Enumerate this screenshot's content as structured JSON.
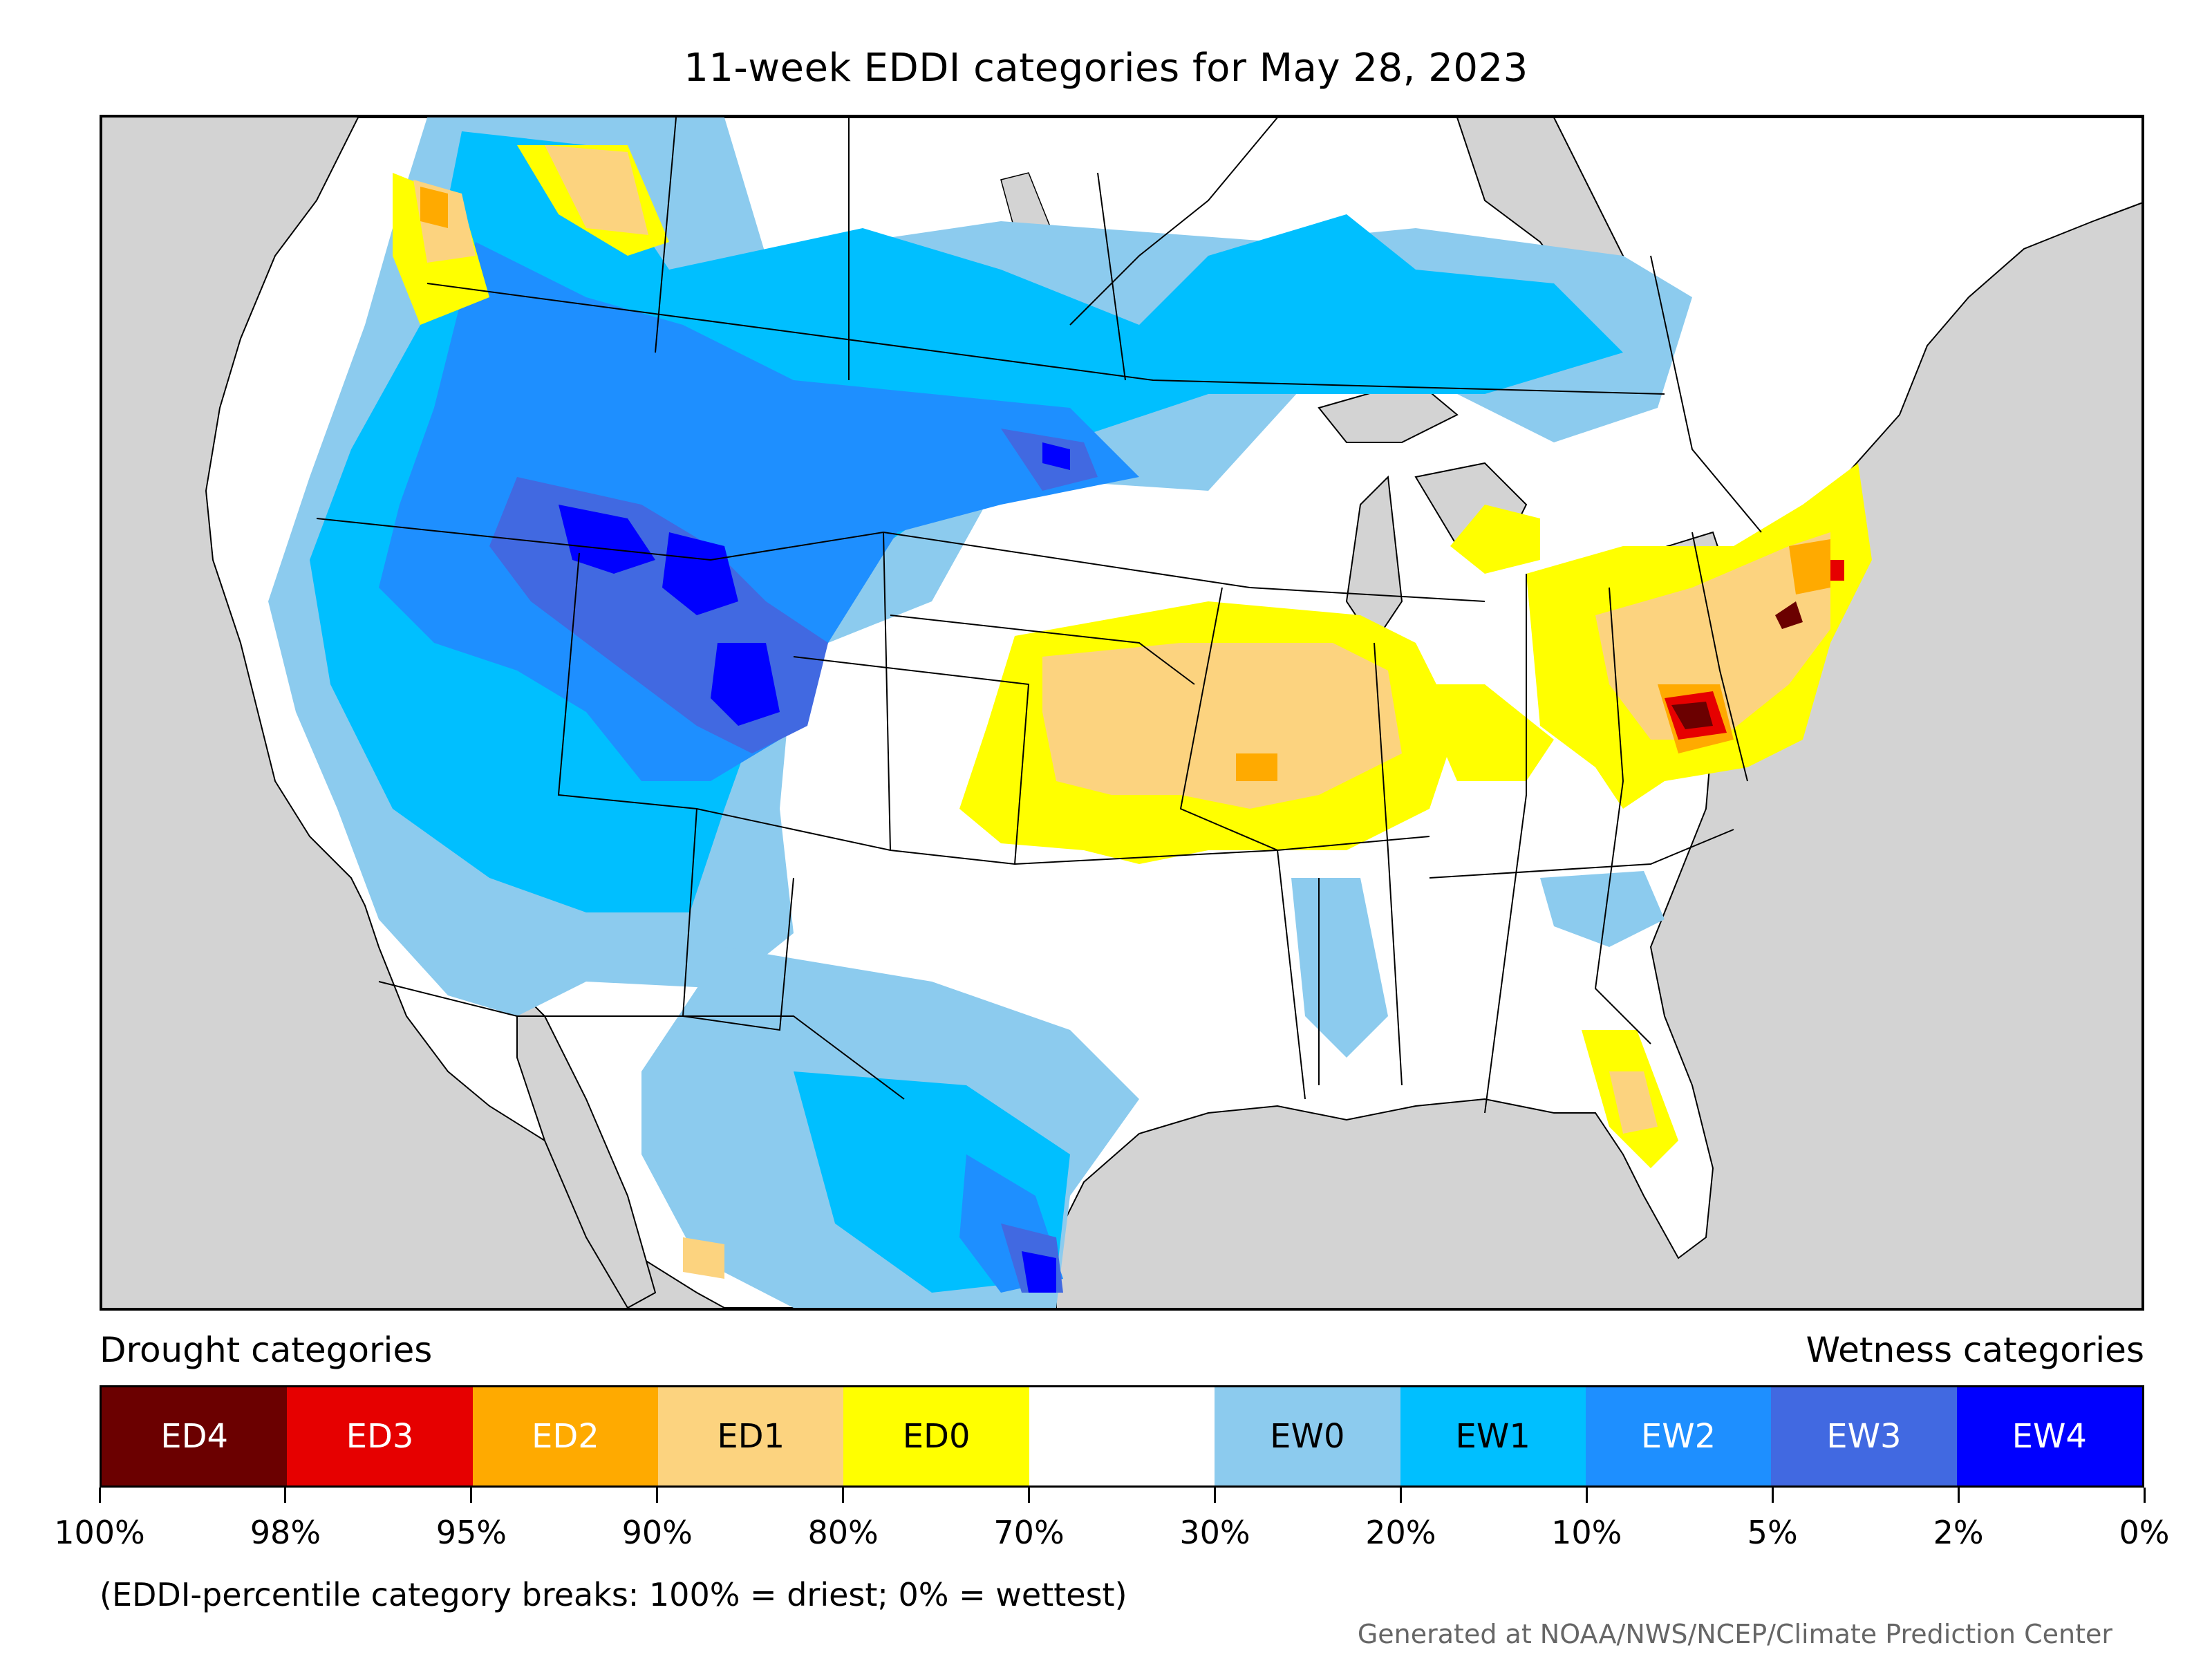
{
  "title": "11-week EDDI categories for May 28, 2023",
  "legend": {
    "left_heading": "Drought categories",
    "right_heading": "Wetness categories",
    "categories": [
      {
        "label": "ED4",
        "color": "#6b0000",
        "text_color": "#ffffff"
      },
      {
        "label": "ED3",
        "color": "#e60000",
        "text_color": "#ffffff"
      },
      {
        "label": "ED2",
        "color": "#ffaa00",
        "text_color": "#ffffff"
      },
      {
        "label": "ED1",
        "color": "#fcd37f",
        "text_color": "#000000"
      },
      {
        "label": "ED0",
        "color": "#ffff00",
        "text_color": "#000000"
      },
      {
        "label": "",
        "color": "#ffffff",
        "text_color": "#000000"
      },
      {
        "label": "EW0",
        "color": "#8ccbee",
        "text_color": "#000000"
      },
      {
        "label": "EW1",
        "color": "#00bfff",
        "text_color": "#000000"
      },
      {
        "label": "EW2",
        "color": "#1e8fff",
        "text_color": "#ffffff"
      },
      {
        "label": "EW3",
        "color": "#4169e1",
        "text_color": "#ffffff"
      },
      {
        "label": "EW4",
        "color": "#0000ff",
        "text_color": "#ffffff"
      }
    ],
    "tick_labels": [
      "100%",
      "98%",
      "95%",
      "90%",
      "80%",
      "70%",
      "30%",
      "20%",
      "10%",
      "5%",
      "2%",
      "0%"
    ]
  },
  "note": "(EDDI-percentile category breaks: 100% = driest; 0% = wettest)",
  "credit": "Generated at NOAA/NWS/NCEP/Climate Prediction Center",
  "map": {
    "background_color": "#d3d3d3",
    "land_color": "#ffffff"
  }
}
